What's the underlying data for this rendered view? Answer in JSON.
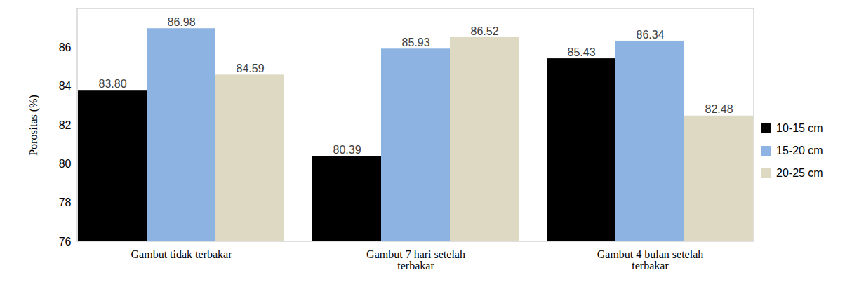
{
  "chart_data": {
    "type": "bar",
    "categories": [
      "Gambut tidak terbakar",
      "Gambut 7 hari setelah terbakar",
      "Gambut 4 bulan setelah terbakar"
    ],
    "series": [
      {
        "name": "10-15 cm",
        "color": "#000000",
        "values": [
          83.8,
          80.39,
          85.43
        ],
        "value_labels": [
          "83.80",
          "80.39",
          "85.43"
        ]
      },
      {
        "name": "15-20 cm",
        "color": "#8db3e2",
        "values": [
          86.98,
          85.93,
          86.34
        ],
        "value_labels": [
          "86.98",
          "85.93",
          "86.34"
        ]
      },
      {
        "name": "20-25 cm",
        "color": "#ddd9c3",
        "values": [
          84.59,
          86.52,
          82.48
        ],
        "value_labels": [
          "84.59",
          "86.52",
          "82.48"
        ]
      }
    ],
    "ylabel": "Porositas (%)",
    "ylim": [
      76,
      88
    ],
    "yticks": [
      76,
      78,
      80,
      82,
      84,
      86
    ],
    "data_labels": true,
    "legend": "right",
    "grid": false
  }
}
